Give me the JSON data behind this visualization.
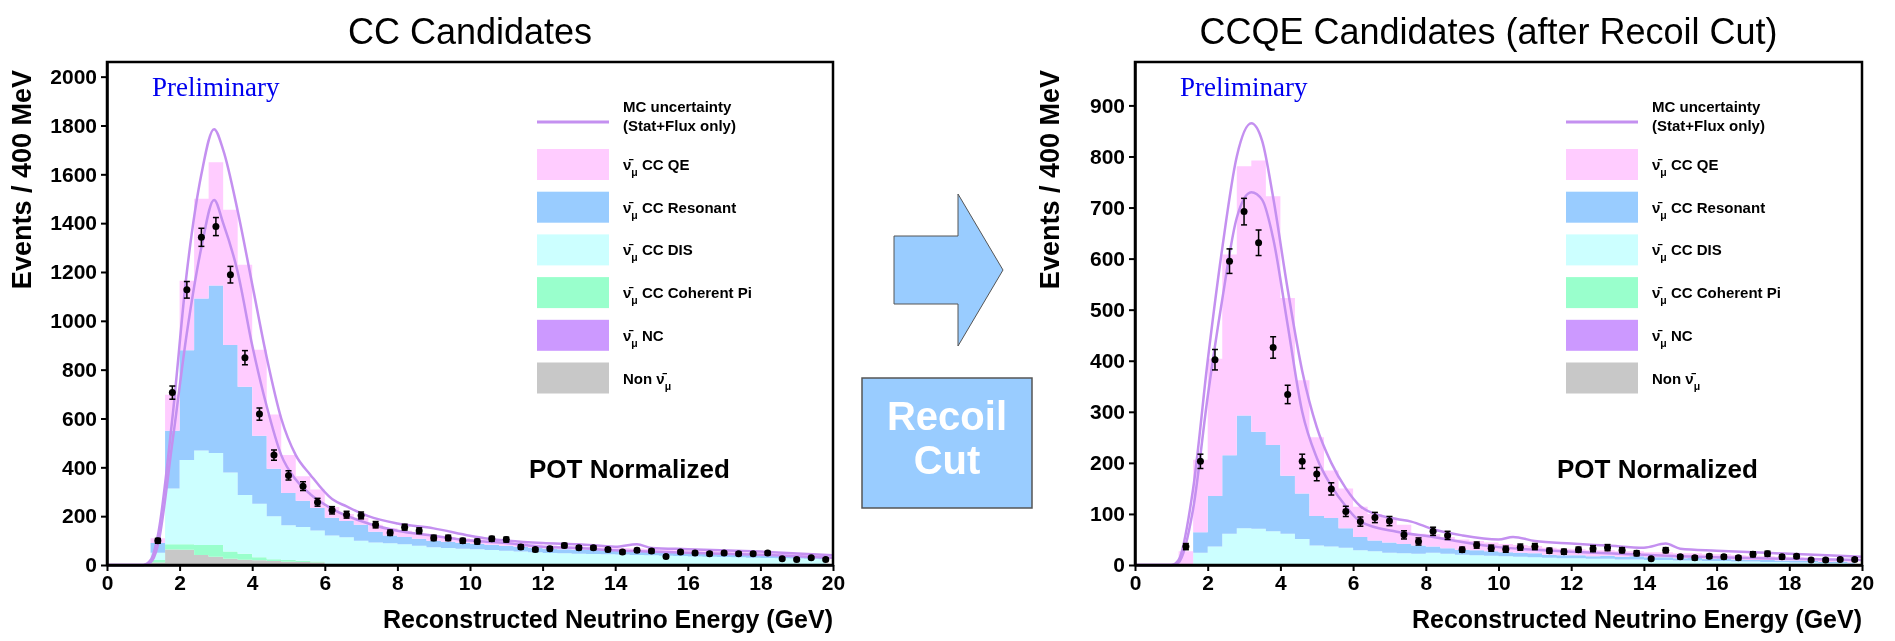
{
  "chart_data": [
    {
      "type": "area",
      "title": "CC Candidates",
      "xlabel": "Reconstructed Neutrino Energy (GeV)",
      "ylabel": "Events / 400 MeV",
      "annotations": [
        "Preliminary",
        "POT Normalized"
      ],
      "stacked": true,
      "legend": "top right",
      "xlim": [
        0,
        20
      ],
      "xticks": [
        0,
        2,
        4,
        6,
        8,
        10,
        12,
        14,
        16,
        18,
        20
      ],
      "ylim": [
        0,
        2060
      ],
      "yticks": [
        0,
        200,
        400,
        600,
        800,
        1000,
        1200,
        1400,
        1600,
        1800,
        2000
      ],
      "x": [
        0.2,
        0.6,
        1,
        1.4,
        1.8,
        2.2,
        2.6,
        3,
        3.4,
        3.8,
        4.2,
        4.6,
        5,
        5.4,
        5.8,
        6.2,
        6.6,
        7,
        7.4,
        7.8,
        8.2,
        8.6,
        9,
        9.4,
        9.8,
        10.2,
        10.6,
        11,
        11.4,
        11.8,
        12.2,
        12.6,
        13,
        13.4,
        13.8,
        14.2,
        14.6,
        15,
        15.4,
        15.8,
        16.2,
        16.6,
        17,
        17.4,
        17.8,
        18.2,
        18.6,
        19,
        19.4,
        19.8
      ],
      "series": [
        {
          "name": "Non ν̄$_{μ}$",
          "color": "#c8c8c8",
          "values": [
            0,
            0,
            0,
            10,
            63,
            62,
            41,
            34,
            26,
            22,
            19,
            16,
            13,
            12,
            10,
            0,
            0,
            0,
            0,
            0,
            0,
            0,
            0,
            0,
            0,
            0,
            0,
            0,
            0,
            0,
            0,
            0,
            0,
            0,
            0,
            0,
            0,
            0,
            0,
            0,
            0,
            0,
            0,
            0,
            0,
            0,
            0,
            0,
            0,
            0
          ]
        },
        {
          "name": "ν̄$_{μ}$ NC",
          "color": "#cc99ff",
          "values": [
            null,
            null,
            null,
            null,
            null,
            null,
            null,
            null,
            null,
            null,
            null,
            null,
            null,
            null,
            null,
            null,
            null,
            null,
            null,
            null,
            null,
            null,
            null,
            null,
            null,
            null,
            null,
            null,
            null,
            null,
            null,
            null,
            null,
            null,
            null,
            null,
            null,
            null,
            null,
            null,
            null,
            null,
            null,
            null,
            null,
            null,
            null,
            null,
            null,
            null
          ]
        },
        {
          "name": "ν̄$_{μ}$ CC Coherent Pi",
          "color": "#99ffcc",
          "values": [
            0,
            0,
            0,
            10,
            22,
            23,
            41,
            48,
            29,
            24,
            13,
            8,
            7,
            5,
            4,
            0,
            0,
            0,
            0,
            0,
            0,
            0,
            0,
            0,
            0,
            0,
            0,
            0,
            0,
            0,
            0,
            0,
            0,
            0,
            0,
            0,
            0,
            0,
            0,
            0,
            0,
            0,
            0,
            0,
            0,
            0,
            0,
            0,
            0,
            0
          ]
        },
        {
          "name": "ν̄$_{μ}$ CC DIS",
          "color": "#ccffff",
          "values": [
            0,
            0,
            0,
            30,
            228,
            345,
            387,
            377,
            324,
            241,
            219,
            176,
            143,
            139,
            127,
            121,
            114,
            99,
            92,
            89,
            85,
            79,
            73,
            70,
            67,
            64,
            61,
            58,
            55,
            52,
            49,
            48,
            46,
            45,
            44,
            43,
            41,
            40,
            38,
            37,
            35,
            34,
            33,
            32,
            30,
            29,
            28,
            27,
            26,
            24
          ]
        },
        {
          "name": "ν̄$_{μ}$ CC Resonant",
          "color": "#99ccff",
          "values": [
            0,
            0,
            0,
            40,
            237,
            449,
            622,
            686,
            522,
            443,
            278,
            194,
            132,
            107,
            92,
            73,
            66,
            66,
            44,
            32,
            30,
            28,
            26,
            25,
            24,
            23,
            22,
            21,
            20,
            19,
            18,
            17,
            17,
            17,
            16,
            15,
            16,
            15,
            15,
            13,
            13,
            13,
            12,
            11,
            12,
            11,
            10,
            10,
            9,
            9
          ]
        },
        {
          "name": "ν̄$_{μ}$ CC QE",
          "color": "#ffccff",
          "values": [
            0,
            0,
            0,
            20,
            147,
            285,
            409,
            504,
            554,
            500,
            353,
            222,
            156,
            100,
            76,
            44,
            29,
            29,
            29,
            29,
            25,
            23,
            21,
            20,
            19,
            18,
            17,
            16,
            15,
            14,
            13,
            13,
            13,
            12,
            12,
            12,
            11,
            11,
            10,
            10,
            10,
            9,
            9,
            9,
            8,
            8,
            8,
            7,
            7,
            7
          ]
        },
        {
          "type": "line",
          "name": "MC uncertainty (Stat+Flux only)",
          "color": "#c490f0",
          "x": [
            0,
            1,
            1.2,
            1.4,
            1.8,
            2.2,
            2.6,
            2.95,
            3.2,
            3.6,
            4,
            4.4,
            4.8,
            5.2,
            5.6,
            6.2,
            6.6,
            7.2,
            8,
            9,
            10,
            10.4,
            11,
            12,
            13,
            14,
            14.6,
            15,
            16,
            18,
            20
          ],
          "values": [
            0,
            0,
            20,
            120,
            600,
            1200,
            1600,
            1785,
            1700,
            1450,
            1150,
            850,
            600,
            450,
            370,
            270,
            240,
            200,
            170,
            150,
            120,
            110,
            100,
            90,
            85,
            75,
            85,
            70,
            65,
            55,
            40
          ]
        },
        {
          "type": "line",
          "color": "#c490f0",
          "x": [
            0,
            1,
            1.2,
            1.4,
            1.8,
            2.2,
            2.6,
            2.95,
            3.2,
            3.6,
            4,
            4.4,
            4.8,
            5.2,
            5.6,
            6.2,
            7.2,
            8,
            9,
            10,
            11,
            12,
            13,
            14,
            15,
            16,
            18,
            20
          ],
          "values": [
            0,
            0,
            10,
            80,
            500,
            950,
            1300,
            1495,
            1400,
            1200,
            900,
            650,
            450,
            350,
            290,
            230,
            170,
            140,
            120,
            100,
            90,
            75,
            70,
            60,
            55,
            50,
            42,
            30
          ]
        },
        {
          "type": "scatter",
          "marker": "circle",
          "color": "#000000",
          "x": [
            1.4,
            1.8,
            2.2,
            2.6,
            3,
            3.4,
            3.8,
            4.2,
            4.6,
            5,
            5.4,
            5.8,
            6.2,
            6.6,
            7,
            7.4,
            7.8,
            8.2,
            8.6,
            9,
            9.4,
            9.8,
            10.2,
            10.6,
            11,
            11.4,
            11.8,
            12.2,
            12.6,
            13,
            13.4,
            13.8,
            14.2,
            14.6,
            15,
            15.4,
            15.8,
            16.2,
            16.6,
            17,
            17.4,
            17.8,
            18.2,
            18.6,
            19,
            19.4,
            19.8
          ],
          "values": [
            99,
            706,
            1127,
            1342,
            1386,
            1189,
            849,
            618,
            450,
            367,
            323,
            257,
            224,
            206,
            203,
            165,
            132,
            155,
            140,
            111,
            111,
            99,
            96,
            107,
            104,
            74,
            63,
            67,
            80,
            71,
            71,
            63,
            53,
            60,
            57,
            35,
            53,
            49,
            46,
            49,
            46,
            46,
            49,
            26,
            23,
            30,
            23
          ],
          "errors": [
            10,
            27,
            34,
            37,
            37,
            34,
            29,
            25,
            21,
            19,
            18,
            16,
            15,
            14,
            14,
            13,
            11,
            12,
            12,
            11,
            11,
            10,
            10,
            10,
            10,
            9,
            8,
            8,
            9,
            8,
            8,
            8,
            7,
            8,
            8,
            6,
            7,
            7,
            7,
            7,
            7,
            7,
            7,
            5,
            5,
            5,
            5
          ]
        }
      ]
    },
    {
      "type": "area",
      "title": "CCQE Candidates (after Recoil Cut)",
      "xlabel": "Reconstructed Neutrino Energy (GeV)",
      "ylabel": "Events / 400 MeV",
      "annotations": [
        "Preliminary",
        "POT Normalized",
        "Recoil Cut"
      ],
      "stacked": true,
      "legend": "top right",
      "xlim": [
        0,
        20
      ],
      "xticks": [
        0,
        2,
        4,
        6,
        8,
        10,
        12,
        14,
        16,
        18,
        20
      ],
      "ylim": [
        0,
        985
      ],
      "yticks": [
        0,
        100,
        200,
        300,
        400,
        500,
        600,
        700,
        800,
        900
      ],
      "x": [
        0.2,
        0.6,
        1,
        1.4,
        1.8,
        2.2,
        2.6,
        3,
        3.4,
        3.8,
        4.2,
        4.6,
        5,
        5.4,
        5.8,
        6.2,
        6.6,
        7,
        7.4,
        7.8,
        8.2,
        8.6,
        9,
        9.4,
        9.8,
        10.2,
        10.6,
        11,
        11.4,
        11.8,
        12.2,
        12.6,
        13,
        13.4,
        13.8,
        14.2,
        14.6,
        15,
        15.4,
        15.8,
        16.2,
        16.6,
        17,
        17.4,
        17.8,
        18.2,
        18.6,
        19,
        19.4,
        19.8
      ],
      "series": [
        {
          "name": "Non ν̄$_{μ}$",
          "color": "#c8c8c8",
          "values": [
            null,
            null,
            null,
            null,
            null,
            null,
            null,
            null,
            null,
            null,
            null,
            null,
            null,
            null,
            null,
            null,
            null,
            null,
            null,
            null,
            null,
            null,
            null,
            null,
            null,
            null,
            null,
            null,
            null,
            null,
            null,
            null,
            null,
            null,
            null,
            null,
            null,
            null,
            null,
            null,
            null,
            null,
            null,
            null,
            null,
            null,
            null,
            null,
            null,
            null
          ]
        },
        {
          "name": "ν̄$_{μ}$ NC",
          "color": "#cc99ff",
          "values": [
            null,
            null,
            null,
            null,
            null,
            null,
            null,
            null,
            null,
            null,
            null,
            null,
            null,
            null,
            null,
            null,
            null,
            null,
            null,
            null,
            null,
            null,
            null,
            null,
            null,
            null,
            null,
            null,
            null,
            null,
            null,
            null,
            null,
            null,
            null,
            null,
            null,
            null,
            null,
            null,
            null,
            null,
            null,
            null,
            null,
            null,
            null,
            null,
            null,
            null
          ]
        },
        {
          "name": "ν̄$_{μ}$ CC Coherent Pi",
          "color": "#99ffcc",
          "values": [
            null,
            null,
            null,
            null,
            null,
            null,
            null,
            null,
            null,
            null,
            null,
            null,
            null,
            null,
            null,
            null,
            null,
            null,
            null,
            null,
            null,
            null,
            null,
            null,
            null,
            null,
            null,
            null,
            null,
            null,
            null,
            null,
            null,
            null,
            null,
            null,
            null,
            null,
            null,
            null,
            null,
            null,
            null,
            null,
            null,
            null,
            null,
            null,
            null,
            null
          ]
        },
        {
          "name": "ν̄$_{μ}$ CC DIS",
          "color": "#ccffff",
          "values": [
            0,
            0,
            0,
            0,
            24,
            36,
            61,
            72,
            71,
            66,
            61,
            51,
            38,
            36,
            34,
            29,
            27,
            24,
            23,
            22,
            24,
            22,
            20,
            19,
            18,
            17,
            16,
            15,
            14,
            13,
            13,
            12,
            12,
            11,
            11,
            10,
            10,
            9,
            9,
            8,
            8,
            7,
            7,
            6,
            6,
            5,
            5,
            4,
            4,
            3
          ]
        },
        {
          "name": "ν̄$_{μ}$ CC Resonant",
          "color": "#99ccff",
          "values": [
            0,
            0,
            0,
            0,
            40,
            99,
            154,
            221,
            190,
            169,
            114,
            89,
            58,
            56,
            38,
            26,
            21,
            20,
            18,
            16,
            12,
            11,
            10,
            10,
            9,
            8,
            8,
            8,
            6,
            6,
            6,
            5,
            6,
            5,
            6,
            5,
            5,
            4,
            5,
            4,
            5,
            4,
            3,
            4,
            3,
            4,
            3,
            2,
            3,
            2
          ]
        },
        {
          "name": "ν̄$_{μ}$ CC QE",
          "color": "#ffccff",
          "values": [
            0,
            0,
            0,
            27,
            142,
            269,
            393,
            488,
            531,
            487,
            348,
            222,
            154,
            93,
            78,
            59,
            52,
            49,
            38,
            23,
            24,
            22,
            20,
            18,
            17,
            16,
            15,
            14,
            14,
            13,
            12,
            12,
            11,
            11,
            10,
            10,
            10,
            10,
            9,
            9,
            8,
            8,
            8,
            7,
            7,
            6,
            6,
            6,
            5,
            5
          ]
        },
        {
          "type": "line",
          "name": "MC uncertainty (Stat+Flux only)",
          "color": "#c490f0",
          "x": [
            0,
            1,
            1.2,
            1.6,
            2,
            2.4,
            2.8,
            3.2,
            3.5,
            3.8,
            4.2,
            4.6,
            5,
            5.4,
            5.8,
            6.2,
            6.6,
            7.2,
            7.6,
            8.2,
            9,
            10,
            10.4,
            11,
            12,
            13,
            14,
            14.6,
            15,
            16,
            18,
            20
          ],
          "values": [
            0,
            0,
            10,
            150,
            400,
            620,
            800,
            865,
            830,
            720,
            540,
            380,
            270,
            200,
            150,
            115,
            100,
            90,
            85,
            70,
            58,
            50,
            55,
            47,
            42,
            38,
            34,
            42,
            32,
            28,
            22,
            16
          ]
        },
        {
          "type": "line",
          "color": "#c490f0",
          "x": [
            0,
            1,
            1.2,
            1.6,
            2,
            2.4,
            2.8,
            3.2,
            3.5,
            3.8,
            4.2,
            4.6,
            5,
            5.4,
            5.8,
            6.2,
            7.2,
            8.2,
            9,
            10,
            11,
            12,
            13,
            14,
            15,
            16,
            18,
            20
          ],
          "values": [
            0,
            0,
            5,
            110,
            330,
            520,
            680,
            730,
            715,
            640,
            470,
            300,
            210,
            155,
            115,
            85,
            65,
            55,
            45,
            35,
            30,
            26,
            23,
            20,
            17,
            15,
            12,
            10
          ]
        },
        {
          "type": "scatter",
          "marker": "circle",
          "color": "#000000",
          "x": [
            1.4,
            1.8,
            2.2,
            2.6,
            3,
            3.4,
            3.8,
            4.2,
            4.6,
            5,
            5.4,
            5.8,
            6.2,
            6.6,
            7,
            7.4,
            7.8,
            8.2,
            8.6,
            9,
            9.4,
            9.8,
            10.2,
            10.6,
            11,
            11.4,
            11.8,
            12.2,
            12.6,
            13,
            13.4,
            13.8,
            14.2,
            14.6,
            15,
            15.4,
            15.8,
            16.2,
            16.6,
            17,
            17.4,
            17.8,
            18.2,
            18.6,
            19,
            19.4,
            19.8
          ],
          "values": [
            36,
            203,
            402,
            595,
            692,
            631,
            426,
            334,
            203,
            178,
            149,
            105,
            85,
            93,
            86,
            59,
            46,
            66,
            58,
            30,
            39,
            33,
            31,
            35,
            36,
            28,
            26,
            30,
            32,
            34,
            29,
            23,
            12,
            29,
            16,
            14,
            17,
            16,
            14,
            21,
            22,
            16,
            17,
            10,
            10,
            11,
            11
          ],
          "errors": [
            6,
            14,
            20,
            24,
            26,
            25,
            21,
            18,
            14,
            13,
            12,
            10,
            9,
            10,
            9,
            8,
            7,
            8,
            8,
            5,
            6,
            6,
            6,
            6,
            6,
            5,
            5,
            5,
            6,
            6,
            5,
            5,
            3,
            5,
            4,
            4,
            4,
            4,
            4,
            5,
            5,
            4,
            4,
            3,
            3,
            3,
            3
          ]
        }
      ]
    }
  ]
}
